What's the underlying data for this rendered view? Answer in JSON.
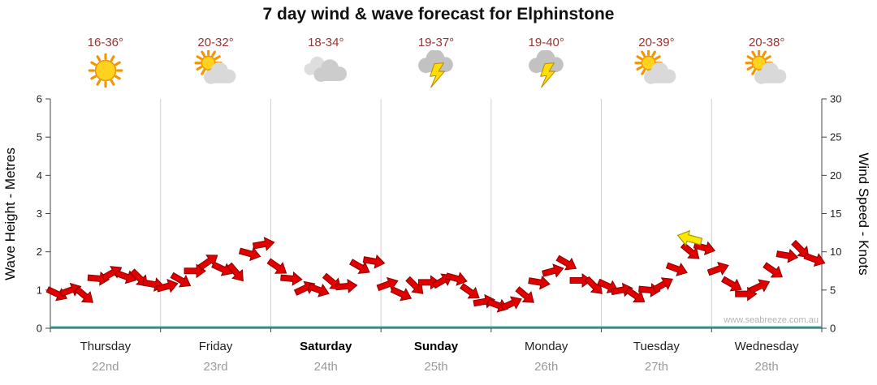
{
  "title": "7 day wind & wave forecast for Elphinstone",
  "watermark": "www.seabreeze.com.au",
  "colors": {
    "temp_text": "#993333",
    "arrow": "#e00000",
    "arrow_outline": "#8b0000",
    "highlight_arrow": "#ffe800",
    "baseline": "#2fa8a8",
    "gridline": "#d0d0d0",
    "axis": "#444444"
  },
  "days": [
    {
      "name": "Thursday",
      "date": "22nd",
      "temp": "16-36°",
      "icon": "sunny",
      "weekend": false
    },
    {
      "name": "Friday",
      "date": "23rd",
      "temp": "20-32°",
      "icon": "partly-cloudy",
      "weekend": false
    },
    {
      "name": "Saturday",
      "date": "24th",
      "temp": "18-34°",
      "icon": "cloudy",
      "weekend": true
    },
    {
      "name": "Sunday",
      "date": "25th",
      "temp": "19-37°",
      "icon": "storm",
      "weekend": true
    },
    {
      "name": "Monday",
      "date": "26th",
      "temp": "19-40°",
      "icon": "storm",
      "weekend": false
    },
    {
      "name": "Tuesday",
      "date": "27th",
      "temp": "20-39°",
      "icon": "partly-cloudy",
      "weekend": false
    },
    {
      "name": "Wednesday",
      "date": "28th",
      "temp": "20-38°",
      "icon": "partly-cloudy",
      "weekend": false
    }
  ],
  "chart_data": {
    "type": "scatter",
    "marker": "wind-arrow",
    "title": "7 day wind & wave forecast for Elphinstone",
    "ylabel_left": "Wave Height - Metres",
    "ylabel_right": "Wind Speed - Knots",
    "ylim_left": [
      0,
      6
    ],
    "yticks_left": [
      0,
      1,
      2,
      3,
      4,
      5,
      6
    ],
    "ylim_right": [
      0,
      30
    ],
    "yticks_right": [
      0,
      5,
      10,
      15,
      20,
      25,
      30
    ],
    "x_categories": [
      "Thursday",
      "Friday",
      "Saturday",
      "Sunday",
      "Monday",
      "Tuesday",
      "Wednesday"
    ],
    "samples_per_day": 8,
    "grid": "vertical-day-separators",
    "legend": "none",
    "wave_height_m": [
      0.9,
      1.0,
      0.85,
      1.3,
      1.45,
      1.35,
      1.3,
      1.15,
      1.1,
      1.25,
      1.5,
      1.75,
      1.55,
      1.45,
      1.95,
      2.2,
      1.6,
      1.3,
      1.05,
      1.0,
      1.2,
      1.1,
      1.6,
      1.75,
      1.15,
      0.9,
      1.1,
      1.2,
      1.25,
      1.3,
      0.95,
      0.7,
      0.6,
      0.65,
      0.85,
      1.2,
      1.5,
      1.7,
      1.25,
      1.1,
      1.1,
      1.0,
      0.85,
      1.0,
      1.15,
      1.55,
      2.0,
      2.1,
      1.55,
      1.15,
      0.9,
      1.1,
      1.5,
      1.9,
      2.05,
      1.8
    ],
    "wind_speed_knots": [
      4.5,
      5,
      4.25,
      6.5,
      7.25,
      6.75,
      6.5,
      5.75,
      5.5,
      6.25,
      7.5,
      8.75,
      7.75,
      7.25,
      9.75,
      11,
      8,
      6.5,
      5.25,
      5,
      6,
      5.5,
      8,
      8.75,
      5.75,
      4.5,
      5.5,
      6,
      6.25,
      6.5,
      4.75,
      3.5,
      3,
      3.25,
      4.25,
      6,
      7.5,
      8.5,
      6.25,
      5.5,
      5.5,
      5,
      4.25,
      5,
      5.75,
      7.75,
      10,
      10.5,
      7.75,
      5.75,
      4.5,
      5.5,
      7.5,
      9.5,
      10.25,
      9
    ],
    "arrow_dir_deg": [
      25,
      -20,
      40,
      5,
      -30,
      20,
      45,
      10,
      -15,
      30,
      0,
      -35,
      25,
      50,
      15,
      -10,
      35,
      5,
      -25,
      20,
      40,
      -5,
      30,
      10,
      -20,
      25,
      45,
      0,
      -30,
      15,
      35,
      -10,
      20,
      -25,
      40,
      10,
      -15,
      30,
      0,
      45,
      25,
      -10,
      35,
      5,
      -30,
      20,
      40,
      15,
      -20,
      30,
      0,
      -25,
      35,
      10,
      45,
      20
    ],
    "highlight_arrow": {
      "day_index": 5,
      "day_fraction": 0.8,
      "wave_height_m": 2.35,
      "wind_speed_knots": 11.75,
      "dir_deg": 195,
      "color": "#ffe800"
    }
  }
}
